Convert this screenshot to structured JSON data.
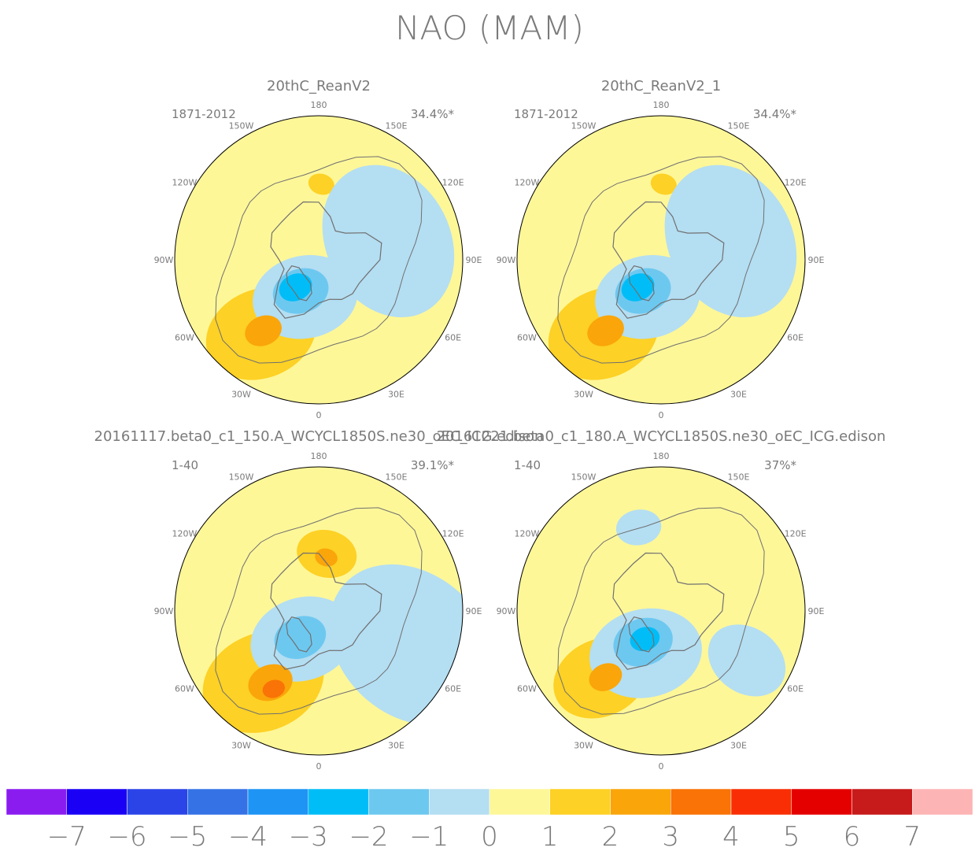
{
  "title": "NAO (MAM)",
  "colors": {
    "text": "#7a7a7a",
    "coast": "#707070",
    "levels": [
      "#8a1cf0",
      "#1a00f5",
      "#2b44e8",
      "#3572e6",
      "#1e94f5",
      "#00bdf7",
      "#6dc8f0",
      "#b4def2",
      "#fef798",
      "#fdd125",
      "#faa50a",
      "#f97306",
      "#f92e04",
      "#e50000",
      "#c71a1a",
      "#fdb4b4"
    ]
  },
  "chart_data": [
    {
      "type": "heatmap",
      "title": "20thC_ReanV2",
      "period": "1871-2012",
      "variance": "34.4%*",
      "lon_labels": [
        "180",
        "150E",
        "120E",
        "90E",
        "60E",
        "30E",
        "0",
        "30W",
        "60W",
        "90W",
        "120W",
        "150W"
      ],
      "blobs": [
        {
          "level": 9,
          "lat": 38,
          "lon": -38,
          "r": 30
        },
        {
          "level": 9,
          "lat": 48,
          "lon": 178,
          "r": 7
        },
        {
          "level": 7,
          "lat": 50,
          "lon": 105,
          "r": 42
        },
        {
          "level": 7,
          "lat": 68,
          "lon": -20,
          "r": 28
        },
        {
          "level": 6,
          "lat": 70,
          "lon": -30,
          "r": 15
        },
        {
          "level": 5,
          "lat": 70,
          "lon": -40,
          "r": 9
        },
        {
          "level": 10,
          "lat": 40,
          "lon": -38,
          "r": 10
        }
      ]
    },
    {
      "type": "heatmap",
      "title": "20thC_ReanV2_1",
      "period": "1871-2012",
      "variance": "34.4%*",
      "lon_labels": [
        "180",
        "150E",
        "120E",
        "90E",
        "60E",
        "30E",
        "0",
        "30W",
        "60W",
        "90W",
        "120W",
        "150W"
      ],
      "blobs": [
        {
          "level": 9,
          "lat": 38,
          "lon": -38,
          "r": 30
        },
        {
          "level": 9,
          "lat": 48,
          "lon": 178,
          "r": 7
        },
        {
          "level": 7,
          "lat": 50,
          "lon": 105,
          "r": 42
        },
        {
          "level": 7,
          "lat": 68,
          "lon": -20,
          "r": 28
        },
        {
          "level": 6,
          "lat": 70,
          "lon": -30,
          "r": 15
        },
        {
          "level": 5,
          "lat": 70,
          "lon": -40,
          "r": 9
        },
        {
          "level": 10,
          "lat": 40,
          "lon": -38,
          "r": 10
        }
      ]
    },
    {
      "type": "heatmap",
      "title": "20161117.beta0_c1_150.A_WCYCL1850S.ne30_oEC_ICG.edison",
      "period": "1-40",
      "variance": "39.1%*",
      "lon_labels": [
        "180",
        "150E",
        "120E",
        "90E",
        "60E",
        "30E",
        "0",
        "30W",
        "60W",
        "90W",
        "120W",
        "150W"
      ],
      "blobs": [
        {
          "level": 9,
          "lat": 40,
          "lon": -38,
          "r": 33
        },
        {
          "level": 9,
          "lat": 58,
          "lon": 172,
          "r": 16
        },
        {
          "level": 10,
          "lat": 60,
          "lon": 172,
          "r": 6
        },
        {
          "level": 7,
          "lat": 35,
          "lon": 70,
          "r": 48
        },
        {
          "level": 7,
          "lat": 72,
          "lon": -30,
          "r": 28
        },
        {
          "level": 6,
          "lat": 72,
          "lon": -35,
          "r": 14
        },
        {
          "level": 10,
          "lat": 42,
          "lon": -34,
          "r": 12
        },
        {
          "level": 11,
          "lat": 40,
          "lon": -30,
          "r": 6
        }
      ]
    },
    {
      "type": "heatmap",
      "title": "20161221.beta0_c1_180.A_WCYCL1850S.ne30_oEC_ICG.edison",
      "period": "1-40",
      "variance": "37%*",
      "lon_labels": [
        "180",
        "150E",
        "120E",
        "90E",
        "60E",
        "30E",
        "0",
        "30W",
        "60W",
        "90W",
        "120W",
        "150W"
      ],
      "blobs": [
        {
          "level": 9,
          "lat": 40,
          "lon": -42,
          "r": 26
        },
        {
          "level": 7,
          "lat": 65,
          "lon": -20,
          "r": 30
        },
        {
          "level": 7,
          "lat": 35,
          "lon": 60,
          "r": 22
        },
        {
          "level": 7,
          "lat": 42,
          "lon": -165,
          "r": 12
        },
        {
          "level": 6,
          "lat": 70,
          "lon": -30,
          "r": 16
        },
        {
          "level": 5,
          "lat": 72,
          "lon": -30,
          "r": 8
        },
        {
          "level": 10,
          "lat": 42,
          "lon": -40,
          "r": 9
        }
      ]
    }
  ],
  "colorbar": {
    "labels": [
      "−7",
      "−6",
      "−5",
      "−4",
      "−3",
      "−2",
      "−1",
      "0",
      "1",
      "2",
      "3",
      "4",
      "5",
      "6",
      "7"
    ]
  }
}
